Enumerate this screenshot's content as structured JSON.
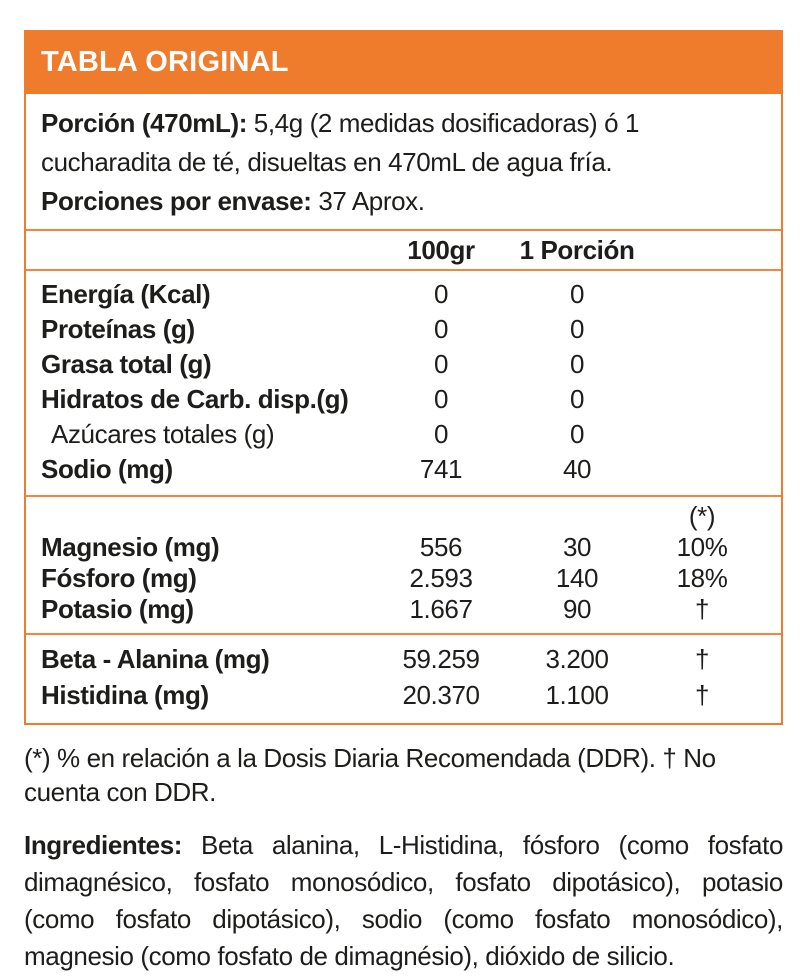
{
  "colors": {
    "accent": "#ee7c2c",
    "rule": "#ef8741",
    "text": "#1d1d1b",
    "header_text": "#ffffff",
    "background": "#ffffff"
  },
  "header": {
    "title": "TABLA ORIGINAL"
  },
  "serving": {
    "portion_label": "Porción (470mL):",
    "portion_text": "5,4g (2 medidas dosificadoras) ó 1 cucharadita de té, disueltas en 470mL de agua fría.",
    "servings_label": "Porciones por envase:",
    "servings_text": "37 Aprox."
  },
  "table": {
    "columns": {
      "per100": "100gr",
      "portion": "1 Porción",
      "ddr_mark": "(*)"
    },
    "main_rows": [
      {
        "label": "Energía (Kcal)",
        "per100": "0",
        "portion": "0"
      },
      {
        "label": "Proteínas (g)",
        "per100": "0",
        "portion": "0"
      },
      {
        "label": "Grasa total (g)",
        "per100": "0",
        "portion": "0"
      },
      {
        "label": "Hidratos de Carb. disp.(g)",
        "per100": "0",
        "portion": "0"
      },
      {
        "label": "Azúcares totales (g)",
        "per100": "0",
        "portion": "0"
      },
      {
        "label": "Sodio (mg)",
        "per100": "741",
        "portion": "40"
      }
    ],
    "mineral_rows": [
      {
        "label": "Magnesio (mg)",
        "per100": "556",
        "portion": "30",
        "ddr": "10%"
      },
      {
        "label": "Fósforo (mg)",
        "per100": "2.593",
        "portion": "140",
        "ddr": "18%"
      },
      {
        "label": "Potasio (mg)",
        "per100": "1.667",
        "portion": "90",
        "ddr": "†"
      }
    ],
    "amino_rows": [
      {
        "label": "Beta - Alanina (mg)",
        "per100": "59.259",
        "portion": "3.200",
        "ddr": "†"
      },
      {
        "label": "Histidina (mg)",
        "per100": "20.370",
        "portion": "1.100",
        "ddr": "†"
      }
    ]
  },
  "footnote": "(*) % en relación a la Dosis Diaria Recomendada (DDR). † No cuenta con DDR.",
  "ingredients": {
    "label": "Ingredientes:",
    "text": "Beta alanina, L-Histidina, fósforo (como fosfato dimagnésico, fosfato monosódico, fosfato dipotásico), potasio (como fosfato dipotásico), sodio (como fosfato monosódico), magnesio (como fosfato de dimagnésio), dióxido de silicio."
  }
}
